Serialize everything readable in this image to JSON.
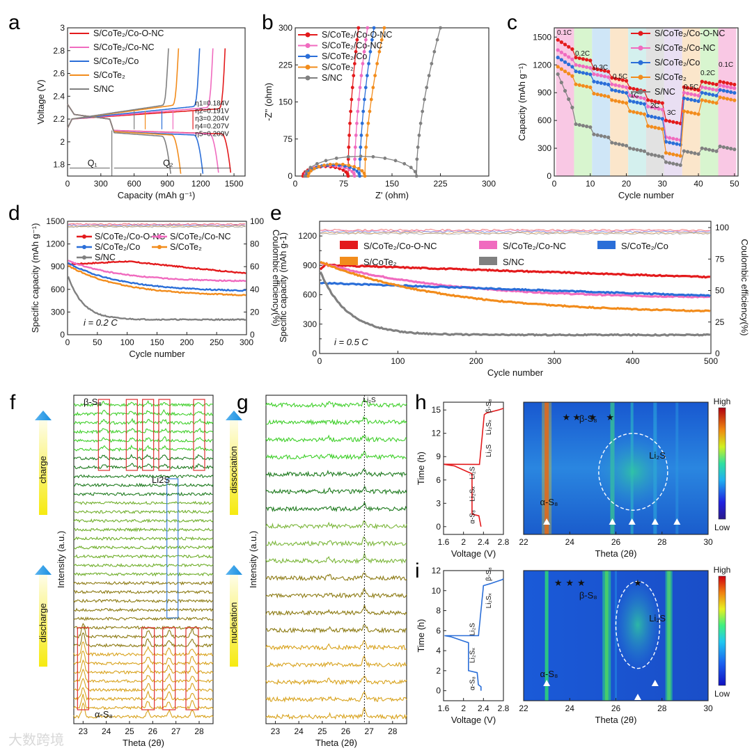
{
  "colors": {
    "coo_nc": "#e31a1c",
    "co_nc": "#f06bbf",
    "co": "#2a6ed8",
    "cote2": "#f28c1c",
    "snc": "#808080",
    "f_green": "#3fcf2a",
    "f_olive": "#8c7a12",
    "f_gold": "#d8a21c",
    "red_box": "#e03030",
    "blue_box": "#3a7ed8"
  },
  "panels": {
    "a": "a",
    "b": "b",
    "c": "c",
    "d": "d",
    "e": "e",
    "f": "f",
    "g": "g",
    "h": "h",
    "i": "i"
  },
  "watermark": "大数跨境",
  "chart_data": [
    {
      "id": "a",
      "type": "line",
      "xlabel": "Capacity (mAh g⁻¹)",
      "ylabel": "Voltage (V)",
      "xlim": [
        0,
        1600
      ],
      "ylim": [
        1.7,
        3.0
      ],
      "xticks": [
        0,
        300,
        600,
        900,
        1200,
        1500
      ],
      "yticks": [
        1.8,
        2.0,
        2.2,
        2.4,
        2.6,
        2.8,
        3.0
      ],
      "legend": [
        "S/CoTe₂/Co-O-NC",
        "S/CoTe₂/Co-NC",
        "S/CoTe₂/Co",
        "S/CoTe₂",
        "S/NC"
      ],
      "annotations": [
        "η1=0.184V",
        "η2=0.191V",
        "η3=0.204V",
        "η4=0.207V",
        "η5=0.209V"
      ],
      "q_labels": [
        "Q₁",
        "Q₂"
      ],
      "series": [
        {
          "discharge_capacity": 1470,
          "charge_capacity": 1420,
          "plateau_dis": 2.1,
          "plateau_ch": 2.27
        },
        {
          "discharge_capacity": 1360,
          "charge_capacity": 1310,
          "plateau_dis": 2.1,
          "plateau_ch": 2.28
        },
        {
          "discharge_capacity": 1220,
          "charge_capacity": 1190,
          "plateau_dis": 2.09,
          "plateau_ch": 2.29
        },
        {
          "discharge_capacity": 1020,
          "charge_capacity": 1000,
          "plateau_dis": 2.09,
          "plateau_ch": 2.3
        },
        {
          "discharge_capacity": 930,
          "charge_capacity": 910,
          "plateau_dis": 2.08,
          "plateau_ch": 2.3
        }
      ]
    },
    {
      "id": "b",
      "type": "line",
      "xlabel": "Z' (ohm)",
      "ylabel": "-Z'' (ohm)",
      "xlim": [
        0,
        300
      ],
      "ylim": [
        0,
        300
      ],
      "xticks": [
        0,
        75,
        150,
        225,
        300
      ],
      "yticks": [
        0,
        75,
        150,
        225,
        300
      ],
      "legend": [
        "S/CoTe₂/Co-O-NC",
        "S/CoTe₂/Co-NC",
        "S/CoTe₂/Co",
        "S/CoTe₂",
        "S/NC"
      ],
      "series": [
        {
          "r_start": 12,
          "r_end": 82,
          "tail_x": 98
        },
        {
          "r_start": 15,
          "r_end": 92,
          "tail_x": 112
        },
        {
          "r_start": 18,
          "r_end": 100,
          "tail_x": 122
        },
        {
          "r_start": 20,
          "r_end": 108,
          "tail_x": 138
        },
        {
          "r_start": 15,
          "r_end": 188,
          "tail_x": 225
        }
      ]
    },
    {
      "id": "c",
      "type": "line",
      "xlabel": "Cycle number",
      "ylabel": "Capacity (mAh g⁻¹)",
      "xlim": [
        0,
        51
      ],
      "ylim": [
        0,
        1600
      ],
      "xticks": [
        0,
        10,
        20,
        30,
        40,
        50
      ],
      "yticks": [
        0,
        300,
        600,
        900,
        1200,
        1500
      ],
      "legend": [
        "S/CoTe₂/Co-O-NC",
        "S/CoTe₂/Co-NC",
        "S/CoTe₂/Co",
        "S/CoTe₂",
        "S/NC"
      ],
      "rates": [
        "0.1C",
        "0.2C",
        "0.3C",
        "0.5C",
        "1C",
        "2C",
        "3C",
        "0.5C",
        "0.2C",
        "0.1C"
      ],
      "series": [
        {
          "values": [
            1470,
            1280,
            1160,
            1060,
            950,
            820,
            600,
            960,
            1020,
            1020
          ]
        },
        {
          "values": [
            1360,
            1200,
            1100,
            990,
            870,
            750,
            420,
            900,
            960,
            980
          ]
        },
        {
          "values": [
            1280,
            1130,
            1020,
            930,
            810,
            650,
            370,
            840,
            900,
            930
          ]
        },
        {
          "values": [
            1180,
            990,
            890,
            820,
            700,
            540,
            250,
            700,
            820,
            850
          ]
        },
        {
          "values": [
            1100,
            560,
            450,
            360,
            300,
            240,
            150,
            270,
            300,
            320
          ]
        }
      ]
    },
    {
      "id": "d",
      "type": "line",
      "xlabel": "Cycle number",
      "ylabel": "Specific capacity (mAh g⁻¹)",
      "y2label": "Coulombic efficiency(%)",
      "xlim": [
        0,
        300
      ],
      "ylim": [
        0,
        1500
      ],
      "y2lim": [
        0,
        100
      ],
      "xticks": [
        0,
        50,
        100,
        150,
        200,
        250,
        300
      ],
      "yticks": [
        0,
        300,
        600,
        900,
        1200,
        1500
      ],
      "y2ticks": [
        0,
        20,
        40,
        60,
        80,
        100
      ],
      "legend": [
        "S/CoTe₂/Co-O-NC",
        "S/CoTe₂/Co-NC",
        "S/CoTe₂/Co",
        "S/CoTe₂",
        "S/NC"
      ],
      "rate_label": "i = 0.2 C",
      "series": [
        {
          "start": 1000,
          "end": 810
        },
        {
          "start": 980,
          "end": 700
        },
        {
          "start": 950,
          "end": 570
        },
        {
          "start": 920,
          "end": 510
        },
        {
          "start": 800,
          "end": 200
        }
      ]
    },
    {
      "id": "e",
      "type": "line",
      "xlabel": "Cycle number",
      "ylabel": "Specific capacity (mAh g-1)",
      "y2label": "Coulombic efficiency(%)",
      "xlim": [
        0,
        500
      ],
      "ylim": [
        0,
        1350
      ],
      "y2lim": [
        0,
        105
      ],
      "xticks": [
        0,
        100,
        200,
        300,
        400,
        500
      ],
      "yticks": [
        0,
        150,
        300,
        450,
        600,
        750,
        900,
        1050,
        1200
      ],
      "y2ticks": [
        0,
        25,
        50,
        75,
        100
      ],
      "legend": [
        "S/CoTe₂/Co-O-NC",
        "S/CoTe₂/Co-NC",
        "S/CoTe₂/Co",
        "S/CoTe₂",
        "S/NC"
      ],
      "rate_label": "i = 0.5 C",
      "series": [
        {
          "start": 950,
          "end": 780
        },
        {
          "start": 930,
          "end": 560
        },
        {
          "start": 780,
          "end": 590
        },
        {
          "start": 940,
          "end": 410
        },
        {
          "start": 850,
          "end": 190
        }
      ]
    },
    {
      "id": "f",
      "type": "line",
      "xlabel": "Theta (2θ)",
      "ylabel": "Intensity (a.u.)",
      "xlim": [
        22.6,
        28.6
      ],
      "xticks": [
        23,
        24,
        25,
        26,
        27,
        28
      ],
      "labels": [
        "β-S₈",
        "Li2S",
        "α-S₈"
      ],
      "arrows": [
        "charge",
        "discharge",
        "dissociation",
        "nucleation"
      ],
      "peaks_alpha_s8": [
        23.0,
        25.8,
        26.7,
        27.7
      ],
      "peaks_beta_s8": [
        23.9,
        25.1,
        25.8,
        26.5,
        28.0
      ]
    },
    {
      "id": "g",
      "type": "line",
      "xlabel": "Theta (2θ)",
      "ylabel": "Intensity (a.u.)",
      "xlim": [
        22.6,
        28.6
      ],
      "xticks": [
        23,
        24,
        25,
        26,
        27,
        28
      ],
      "reference_label": "Li₂S",
      "reference_x": 26.8
    },
    {
      "id": "h",
      "type": "heatmap",
      "voltage_xlabel": "Voltage (V)",
      "voltage_ylabel": "Time (h)",
      "voltage_xticks": [
        1.6,
        2.0,
        2.4,
        2.8
      ],
      "voltage_yticks": [
        0,
        3,
        6,
        9,
        12,
        15
      ],
      "xlabel": "Theta (2θ)",
      "xticks": [
        22,
        24,
        26,
        28,
        30
      ],
      "colorbar": [
        "High",
        "Low"
      ],
      "labels": [
        "β-S₈",
        "Li₂S",
        "α-S₈"
      ],
      "curve_labels": [
        "α-S₈",
        "Li₂Sₓ",
        "Li₂S",
        "Li₂S",
        "Li₂Sₓ",
        "β-S₈"
      ]
    },
    {
      "id": "i",
      "type": "heatmap",
      "voltage_xlabel": "Voltage (V)",
      "voltage_ylabel": "Time (h)",
      "voltage_xticks": [
        1.6,
        2.0,
        2.4,
        2.8
      ],
      "voltage_yticks": [
        0,
        2,
        4,
        6,
        8,
        10,
        12
      ],
      "xlabel": "Theta (2θ)",
      "xticks": [
        22,
        24,
        26,
        28,
        30
      ],
      "colorbar": [
        "High",
        "Low"
      ],
      "labels": [
        "β-S₈",
        "Li₂S",
        "α-S₈"
      ],
      "curve_labels": [
        "α-S₈",
        "Li₂Sₓ",
        "Li₂S",
        "Li₂Sₓ",
        "β-S₈"
      ]
    }
  ]
}
